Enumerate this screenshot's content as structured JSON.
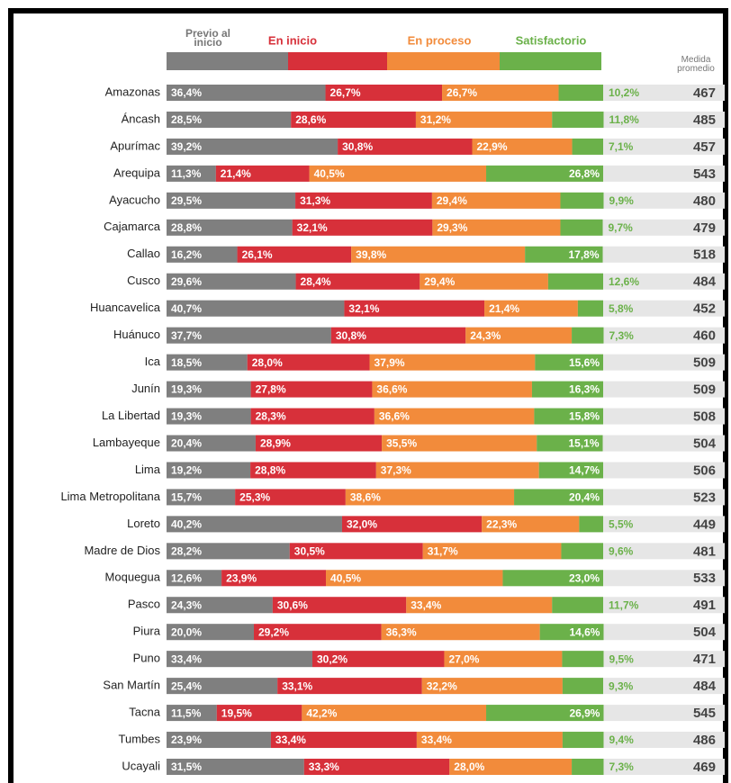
{
  "chart_data": {
    "type": "stacked-bar",
    "orientation": "horizontal",
    "categories": [
      "Amazonas",
      "Áncash",
      "Apurímac",
      "Arequipa",
      "Ayacucho",
      "Cajamarca",
      "Callao",
      "Cusco",
      "Huancavelica",
      "Huánuco",
      "Ica",
      "Junín",
      "La Libertad",
      "Lambayeque",
      "Lima",
      "Lima Metropolitana",
      "Loreto",
      "Madre de Dios",
      "Moquegua",
      "Pasco",
      "Piura",
      "Puno",
      "San Martín",
      "Tacna",
      "Tumbes",
      "Ucayali"
    ],
    "xlim": [
      0,
      100
    ],
    "series": [
      {
        "name": "Previo al inicio",
        "color": "#7f7f7f",
        "values": [
          36.4,
          28.5,
          39.2,
          11.3,
          29.5,
          28.8,
          16.2,
          29.6,
          40.7,
          37.7,
          18.5,
          19.3,
          19.3,
          20.4,
          19.2,
          15.7,
          40.2,
          28.2,
          12.6,
          24.3,
          20.0,
          33.4,
          25.4,
          11.5,
          23.9,
          31.5
        ],
        "value_labels": [
          "36,4%",
          "28,5%",
          "39,2%",
          "11,3%",
          "29,5%",
          "28,8%",
          "16,2%",
          "29,6%",
          "40,7%",
          "37,7%",
          "18,5%",
          "19,3%",
          "19,3%",
          "20,4%",
          "19,2%",
          "15,7%",
          "40,2%",
          "28,2%",
          "12,6%",
          "24,3%",
          "20,0%",
          "33,4%",
          "25,4%",
          "11,5%",
          "23,9%",
          "31,5%"
        ]
      },
      {
        "name": "En inicio",
        "color": "#d7303a",
        "values": [
          26.7,
          28.6,
          30.8,
          21.4,
          31.3,
          32.1,
          26.1,
          28.4,
          32.1,
          30.8,
          28.0,
          27.8,
          28.3,
          28.9,
          28.8,
          25.3,
          32.0,
          30.5,
          23.9,
          30.6,
          29.2,
          30.2,
          33.1,
          19.5,
          33.4,
          33.3
        ],
        "value_labels": [
          "26,7%",
          "28,6%",
          "30,8%",
          "21,4%",
          "31,3%",
          "32,1%",
          "26,1%",
          "28,4%",
          "32,1%",
          "30,8%",
          "28,0%",
          "27,8%",
          "28,3%",
          "28,9%",
          "28,8%",
          "25,3%",
          "32,0%",
          "30,5%",
          "23,9%",
          "30,6%",
          "29,2%",
          "30,2%",
          "33,1%",
          "19,5%",
          "33,4%",
          "33,3%"
        ]
      },
      {
        "name": "En proceso",
        "color": "#f28b3b",
        "values": [
          26.7,
          31.2,
          22.9,
          40.5,
          29.4,
          29.3,
          39.8,
          29.4,
          21.4,
          24.3,
          37.9,
          36.6,
          36.6,
          35.5,
          37.3,
          38.6,
          22.3,
          31.7,
          40.5,
          33.4,
          36.3,
          27.0,
          32.2,
          42.2,
          33.4,
          28.0
        ],
        "value_labels": [
          "26,7%",
          "31,2%",
          "22,9%",
          "40,5%",
          "29,4%",
          "29,3%",
          "39,8%",
          "29,4%",
          "21,4%",
          "24,3%",
          "37,9%",
          "36,6%",
          "36,6%",
          "35,5%",
          "37,3%",
          "38,6%",
          "22,3%",
          "31,7%",
          "40,5%",
          "33,4%",
          "36,3%",
          "27,0%",
          "32,2%",
          "42,2%",
          "33,4%",
          "28,0%"
        ]
      },
      {
        "name": "Satisfactorio",
        "color": "#6bb14a",
        "values": [
          10.2,
          11.8,
          7.1,
          26.8,
          9.9,
          9.7,
          17.8,
          12.6,
          5.8,
          7.3,
          15.6,
          16.3,
          15.8,
          15.1,
          14.7,
          20.4,
          5.5,
          9.6,
          23.0,
          11.7,
          14.6,
          9.5,
          9.3,
          26.9,
          9.4,
          7.3
        ],
        "value_labels": [
          "10,2%",
          "11,8%",
          "7,1%",
          "26,8%",
          "9,9%",
          "9,7%",
          "17,8%",
          "12,6%",
          "5,8%",
          "7,3%",
          "15,6%",
          "16,3%",
          "15,8%",
          "15,1%",
          "14,7%",
          "20,4%",
          "5,5%",
          "9,6%",
          "23,0%",
          "11,7%",
          "14,6%",
          "9,5%",
          "9,3%",
          "26,9%",
          "9,4%",
          "7,3%"
        ]
      }
    ],
    "average": {
      "name": "Medida promedio",
      "values": [
        467,
        485,
        457,
        543,
        480,
        479,
        518,
        484,
        452,
        460,
        509,
        509,
        508,
        504,
        506,
        523,
        449,
        481,
        533,
        491,
        504,
        471,
        484,
        545,
        486,
        469
      ]
    }
  }
}
